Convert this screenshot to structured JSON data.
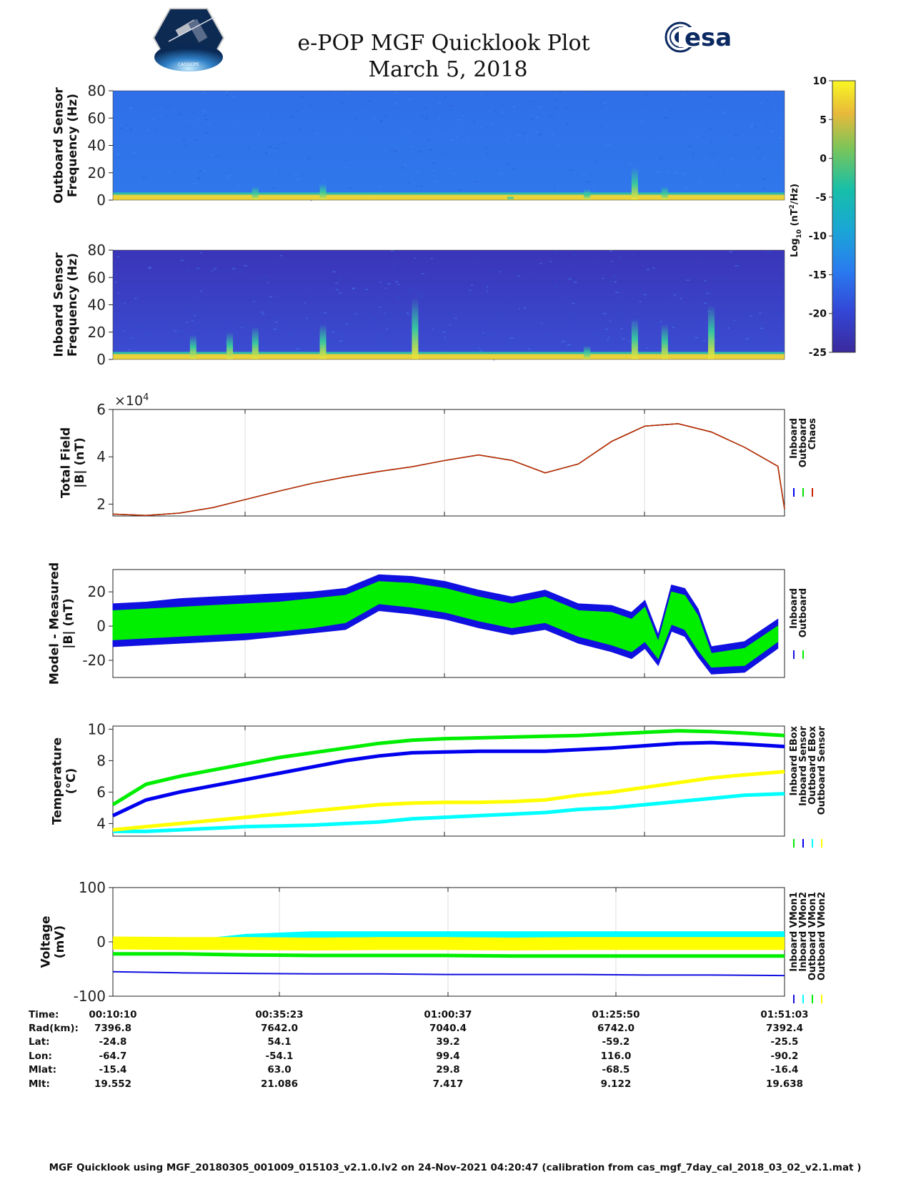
{
  "header": {
    "title": "e-POP MGF Quicklook Plot",
    "date": "March 5, 2018",
    "left_logo": {
      "icon": "cassiope-mission-logo",
      "text": "CASSIOPE"
    },
    "right_logo": {
      "icon": "esa-logo",
      "text": "esa"
    }
  },
  "chart_data": [
    {
      "type": "heatmap",
      "id": "outboard-spectrogram",
      "ylabel": [
        "Outboard Sensor",
        "Frequency (Hz)"
      ],
      "y_ticks": [
        0,
        20,
        40,
        60,
        80
      ],
      "ylim": [
        0,
        80
      ],
      "description_values": {
        "background_log_power": -17,
        "low_freq_band_log_power": 5,
        "low_freq_band_hz": [
          0,
          4
        ]
      },
      "bursts": [
        {
          "t": "00:31:30",
          "top_hz": 10
        },
        {
          "t": "00:41:40",
          "top_hz": 12
        },
        {
          "t": "01:09:50",
          "top_hz": 3
        },
        {
          "t": "01:21:20",
          "top_hz": 8
        },
        {
          "t": "01:28:30",
          "top_hz": 24
        },
        {
          "t": "01:33:00",
          "top_hz": 10
        }
      ]
    },
    {
      "type": "heatmap",
      "id": "inboard-spectrogram",
      "ylabel": [
        "Inboard Sensor",
        "Frequency (Hz)"
      ],
      "y_ticks": [
        0,
        20,
        40,
        60,
        80
      ],
      "ylim": [
        0,
        80
      ],
      "description_values": {
        "background_log_power": -22,
        "low_freq_band_log_power": 5,
        "low_freq_band_hz": [
          0,
          4
        ]
      },
      "bursts": [
        {
          "t": "00:22:10",
          "top_hz": 18
        },
        {
          "t": "00:27:40",
          "top_hz": 20
        },
        {
          "t": "00:31:30",
          "top_hz": 24
        },
        {
          "t": "00:41:40",
          "top_hz": 26
        },
        {
          "t": "00:55:30",
          "top_hz": 45
        },
        {
          "t": "01:21:20",
          "top_hz": 10
        },
        {
          "t": "01:28:30",
          "top_hz": 30
        },
        {
          "t": "01:33:00",
          "top_hz": 26
        },
        {
          "t": "01:40:00",
          "top_hz": 40
        }
      ]
    },
    {
      "type": "line",
      "id": "total-field",
      "ylabel": [
        "Total Field",
        "|B| (nT)"
      ],
      "multiplier": "×10",
      "multiplier_exp": "4",
      "y_ticks": [
        2,
        4,
        6
      ],
      "ylim": [
        1.5,
        6
      ],
      "x_minutes": [
        0,
        5,
        10,
        15,
        20,
        25,
        30,
        35,
        40,
        45,
        50,
        55,
        60,
        65,
        70,
        75,
        80,
        85,
        90,
        95,
        100
      ],
      "series": [
        {
          "name": "Chaos",
          "color": "#cc2200",
          "values": [
            1.58,
            1.52,
            1.62,
            1.85,
            2.2,
            2.55,
            2.88,
            3.15,
            3.38,
            3.58,
            3.85,
            4.08,
            3.85,
            3.32,
            3.7,
            4.65,
            5.3,
            5.4,
            5.05,
            4.4,
            3.6
          ]
        },
        {
          "name": "Outboard",
          "color": "#00e000",
          "values": [
            1.58,
            1.52,
            1.62,
            1.85,
            2.2,
            2.55,
            2.88,
            3.15,
            3.38,
            3.58,
            3.85,
            4.08,
            3.85,
            3.32,
            3.7,
            4.65,
            5.3,
            5.4,
            5.05,
            4.4,
            3.6
          ]
        },
        {
          "name": "Inboard",
          "color": "#0000ee",
          "values": [
            1.58,
            1.52,
            1.62,
            1.85,
            2.2,
            2.55,
            2.88,
            3.15,
            3.38,
            3.58,
            3.85,
            4.08,
            3.85,
            3.32,
            3.7,
            4.65,
            5.3,
            5.4,
            5.05,
            4.4,
            3.6
          ]
        }
      ],
      "end_value": 1.8
    },
    {
      "type": "line",
      "id": "model-measured",
      "ylabel": [
        "Model - Measured",
        "|B| (nT)"
      ],
      "y_ticks": [
        -20,
        0,
        20
      ],
      "ylim": [
        -30,
        33
      ],
      "x_minutes": [
        0,
        5,
        10,
        15,
        20,
        25,
        30,
        35,
        40,
        45,
        50,
        55,
        60,
        65,
        70,
        75,
        78,
        80,
        82,
        84,
        86,
        88,
        90,
        95,
        100
      ],
      "series": [
        {
          "name": "Inboard",
          "color": "#1010e0",
          "upper": [
            13,
            14,
            16,
            17,
            18,
            19,
            20,
            22,
            30,
            29,
            26,
            21,
            17,
            21,
            13,
            12,
            8,
            15,
            -5,
            24,
            22,
            10,
            -12,
            -9,
            4
          ],
          "lower": [
            -12,
            -11,
            -10,
            -9,
            -8,
            -6,
            -4,
            -2,
            9,
            7,
            4,
            -1,
            -5,
            -2,
            -10,
            -15,
            -19,
            -13,
            -23,
            -3,
            -6,
            -18,
            -28,
            -27,
            -13
          ]
        },
        {
          "name": "Outboard",
          "color": "#00ee00",
          "upper": [
            9,
            10,
            11,
            12,
            13,
            14,
            16,
            18,
            26,
            25,
            22,
            17,
            13,
            17,
            9,
            8,
            4,
            11,
            -9,
            20,
            18,
            6,
            -16,
            -13,
            0
          ],
          "lower": [
            -8,
            -7,
            -6,
            -5,
            -4,
            -3,
            -1,
            2,
            13,
            11,
            8,
            3,
            -1,
            2,
            -6,
            -11,
            -15,
            -9,
            -19,
            1,
            -2,
            -14,
            -24,
            -23,
            -9
          ]
        }
      ]
    },
    {
      "type": "line",
      "id": "temperature",
      "ylabel": [
        "Temperature",
        "(°C)"
      ],
      "y_ticks": [
        4,
        6,
        8,
        10
      ],
      "ylim": [
        3.2,
        10.2
      ],
      "x_minutes": [
        0,
        5,
        10,
        15,
        20,
        25,
        30,
        35,
        40,
        45,
        50,
        55,
        60,
        65,
        70,
        75,
        80,
        85,
        90,
        95,
        101
      ],
      "series": [
        {
          "name": "Inboard EBox",
          "color": "#00ee00",
          "values": [
            5.2,
            6.5,
            7.0,
            7.4,
            7.8,
            8.2,
            8.5,
            8.8,
            9.1,
            9.3,
            9.4,
            9.45,
            9.5,
            9.55,
            9.6,
            9.7,
            9.8,
            9.9,
            9.85,
            9.75,
            9.6
          ]
        },
        {
          "name": "Inboard Sensor",
          "color": "#0000ee",
          "values": [
            4.5,
            5.5,
            6.0,
            6.4,
            6.8,
            7.2,
            7.6,
            8.0,
            8.3,
            8.5,
            8.55,
            8.6,
            8.6,
            8.6,
            8.7,
            8.8,
            8.95,
            9.1,
            9.15,
            9.05,
            8.9
          ]
        },
        {
          "name": "Outboard EBox",
          "color": "#00ffff",
          "values": [
            3.5,
            3.5,
            3.6,
            3.7,
            3.8,
            3.85,
            3.9,
            4.0,
            4.1,
            4.3,
            4.4,
            4.5,
            4.6,
            4.7,
            4.9,
            5.0,
            5.2,
            5.4,
            5.6,
            5.8,
            5.9
          ]
        },
        {
          "name": "Outboard Sensor",
          "color": "#ffff00",
          "values": [
            3.6,
            3.8,
            4.0,
            4.2,
            4.4,
            4.6,
            4.8,
            5.0,
            5.2,
            5.3,
            5.35,
            5.35,
            5.4,
            5.5,
            5.8,
            6.0,
            6.3,
            6.6,
            6.9,
            7.1,
            7.3
          ]
        }
      ]
    },
    {
      "type": "line",
      "id": "voltage",
      "ylabel": [
        "Voltage",
        "(mV)"
      ],
      "y_ticks": [
        -100,
        0,
        100
      ],
      "ylim": [
        -100,
        100
      ],
      "x_minutes": [
        0,
        10,
        20,
        30,
        40,
        50,
        60,
        70,
        80,
        90,
        101
      ],
      "series": [
        {
          "name": "Inboard VMon1",
          "color": "#1010e0",
          "values": [
            -55,
            -57,
            -58,
            -59,
            -59,
            -60,
            -60,
            -60,
            -61,
            -61,
            -62
          ]
        },
        {
          "name": "Inboard VMon2",
          "color": "#00ffff",
          "values": [
            -5,
            -5,
            8,
            13,
            13,
            13,
            13,
            13,
            13,
            13,
            13
          ]
        },
        {
          "name": "Outboard VMon1",
          "color": "#00ee00",
          "values": [
            -22,
            -22,
            -24,
            -25,
            -25,
            -25,
            -26,
            -26,
            -26,
            -26,
            -26
          ]
        },
        {
          "name": "Outboard VMon2",
          "color": "#ffff00",
          "values": [
            -2,
            -3,
            -3,
            -4,
            -3,
            -3,
            -4,
            -3,
            -3,
            -3,
            -3
          ]
        }
      ]
    }
  ],
  "colorbar": {
    "label": "Log",
    "label_sub": "10",
    "label_rest": " (nT",
    "label_sup": "2",
    "label_end": "/Hz)",
    "ticks": [
      10,
      5,
      0,
      -5,
      -10,
      -15,
      -20,
      -25
    ],
    "range": [
      -25,
      10
    ]
  },
  "ephemeris": {
    "row_labels": [
      "Time:",
      "Rad(km):",
      "Lat:",
      "Lon:",
      "Mlat:",
      "Mlt:"
    ],
    "columns": [
      [
        "00:10:10",
        "7396.8",
        "-24.8",
        "-64.7",
        "-15.4",
        "19.552"
      ],
      [
        "00:35:23",
        "7642.0",
        "54.1",
        "-54.1",
        "63.0",
        "21.086"
      ],
      [
        "01:00:37",
        "7040.4",
        "39.2",
        "99.4",
        "29.8",
        "7.417"
      ],
      [
        "01:25:50",
        "6742.0",
        "-59.2",
        "116.0",
        "-68.5",
        "9.122"
      ],
      [
        "01:51:03",
        "7392.4",
        "-25.5",
        "-90.2",
        "-16.4",
        "19.638"
      ]
    ]
  },
  "footer": "MGF Quicklook using MGF_20180305_001009_015103_v2.1.0.lv2 on 24-Nov-2021 04:20:47 (calibration from cas_mgf_7day_cal_2018_03_02_v2.1.mat )"
}
